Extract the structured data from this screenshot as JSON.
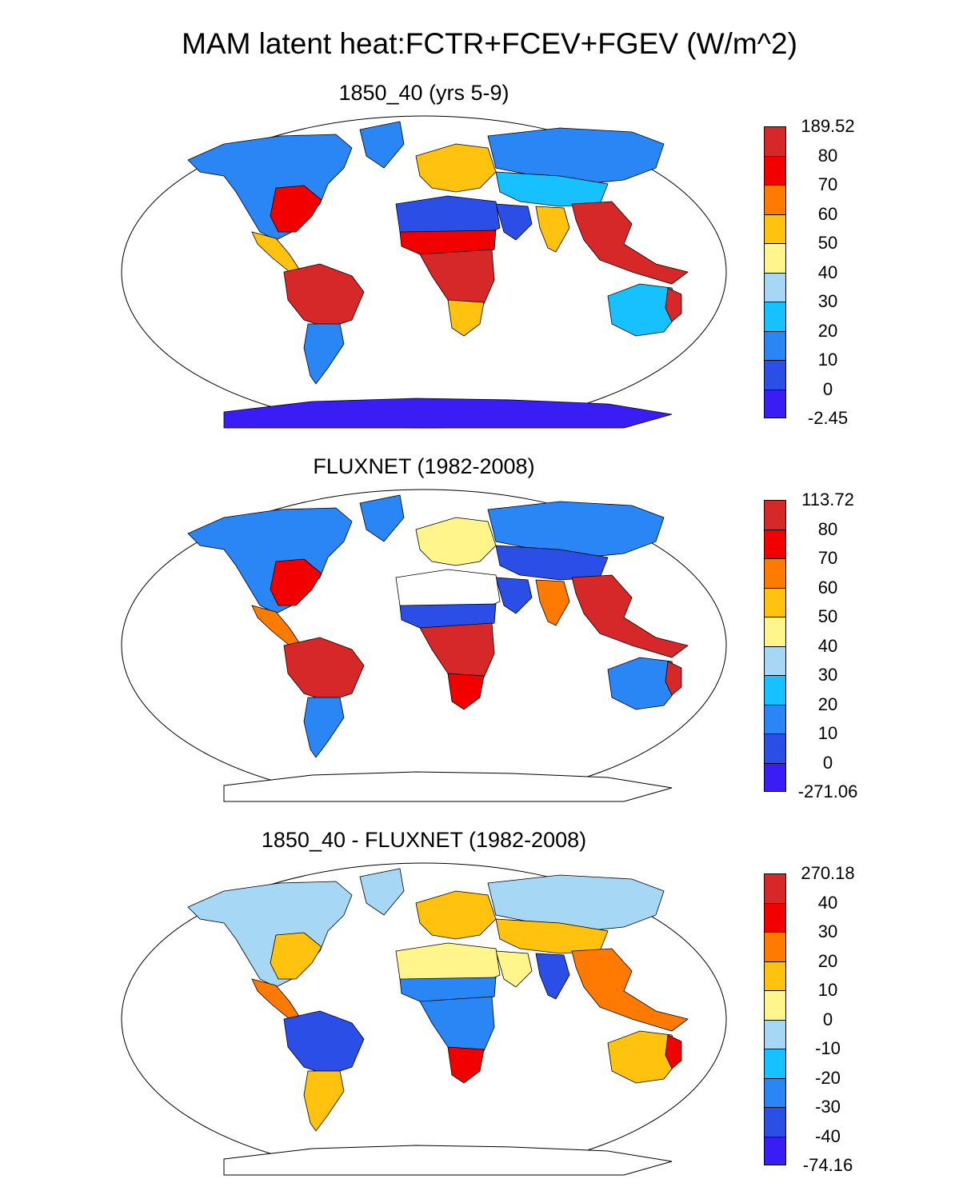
{
  "title": "MAM latent heat:FCTR+FCEV+FGEV (W/m^2)",
  "palette": {
    "blue_dark": "#3a1cf5",
    "blue2": "#2b4fe6",
    "blue3": "#2b86f5",
    "cyan": "#17c1ff",
    "light_blue": "#a6d8f5",
    "yellow_light": "#fff58a",
    "yellow": "#ffc20e",
    "orange": "#ff7a00",
    "red": "#f20000",
    "dark_red": "#d62828"
  },
  "panels": [
    {
      "title": "1850_40 (yrs 5-9)",
      "colorbar": {
        "labels": [
          "189.52",
          "80",
          "70",
          "60",
          "50",
          "40",
          "30",
          "20",
          "10",
          "0",
          "-2.45"
        ],
        "colors": [
          "#d62828",
          "#f20000",
          "#ff7a00",
          "#ffc20e",
          "#fff58a",
          "#a6d8f5",
          "#17c1ff",
          "#2b86f5",
          "#2b4fe6",
          "#3a1cf5"
        ]
      },
      "fields": {
        "antarctica": "#3a1cf5",
        "north_america": "#2b86f5",
        "na_east": "#f20000",
        "greenland_edge": "#2b86f5",
        "central_america": "#ffc20e",
        "amazon": "#d62828",
        "sa_south": "#2b86f5",
        "sahara": "#2b4fe6",
        "sahel": "#f20000",
        "central_africa": "#d62828",
        "south_africa": "#ffc20e",
        "europe": "#ffc20e",
        "siberia": "#2b86f5",
        "central_asia": "#17c1ff",
        "india": "#ffc20e",
        "se_asia": "#d62828",
        "australia": "#17c1ff",
        "australia_edge": "#d62828",
        "arabia": "#2b4fe6"
      }
    },
    {
      "title": "FLUXNET (1982-2008)",
      "colorbar": {
        "labels": [
          "113.72",
          "80",
          "70",
          "60",
          "50",
          "40",
          "30",
          "20",
          "10",
          "0",
          "-271.06"
        ],
        "colors": [
          "#d62828",
          "#f20000",
          "#ff7a00",
          "#ffc20e",
          "#fff58a",
          "#a6d8f5",
          "#17c1ff",
          "#2b86f5",
          "#2b4fe6",
          "#3a1cf5"
        ]
      },
      "fields": {
        "antarctica": "none",
        "north_america": "#2b86f5",
        "na_east": "#f20000",
        "greenland_edge": "#2b86f5",
        "central_america": "#ff7a00",
        "amazon": "#d62828",
        "sa_south": "#2b86f5",
        "sahara": "#ffffff",
        "sahel": "#2b4fe6",
        "central_africa": "#d62828",
        "south_africa": "#f20000",
        "europe": "#fff58a",
        "siberia": "#2b86f5",
        "central_asia": "#2b4fe6",
        "india": "#ff7a00",
        "se_asia": "#d62828",
        "australia": "#2b86f5",
        "australia_edge": "#d62828",
        "arabia": "#2b4fe6"
      }
    },
    {
      "title": "1850_40 - FLUXNET (1982-2008)",
      "colorbar": {
        "labels": [
          "270.18",
          "40",
          "30",
          "20",
          "10",
          "0",
          "-10",
          "-20",
          "-30",
          "-40",
          "-74.16"
        ],
        "colors": [
          "#d62828",
          "#f20000",
          "#ff7a00",
          "#ffc20e",
          "#fff58a",
          "#a6d8f5",
          "#17c1ff",
          "#2b86f5",
          "#2b4fe6",
          "#3a1cf5"
        ]
      },
      "fields": {
        "antarctica": "none",
        "north_america": "#a6d8f5",
        "na_east": "#ffc20e",
        "greenland_edge": "#a6d8f5",
        "central_america": "#ff7a00",
        "amazon": "#2b4fe6",
        "sa_south": "#ffc20e",
        "sahara": "#fff58a",
        "sahel": "#2b86f5",
        "central_africa": "#2b86f5",
        "south_africa": "#f20000",
        "europe": "#ffc20e",
        "siberia": "#a6d8f5",
        "central_asia": "#ffc20e",
        "india": "#2b4fe6",
        "se_asia": "#ff7a00",
        "australia": "#ffc20e",
        "australia_edge": "#f20000",
        "arabia": "#fff58a"
      }
    }
  ]
}
